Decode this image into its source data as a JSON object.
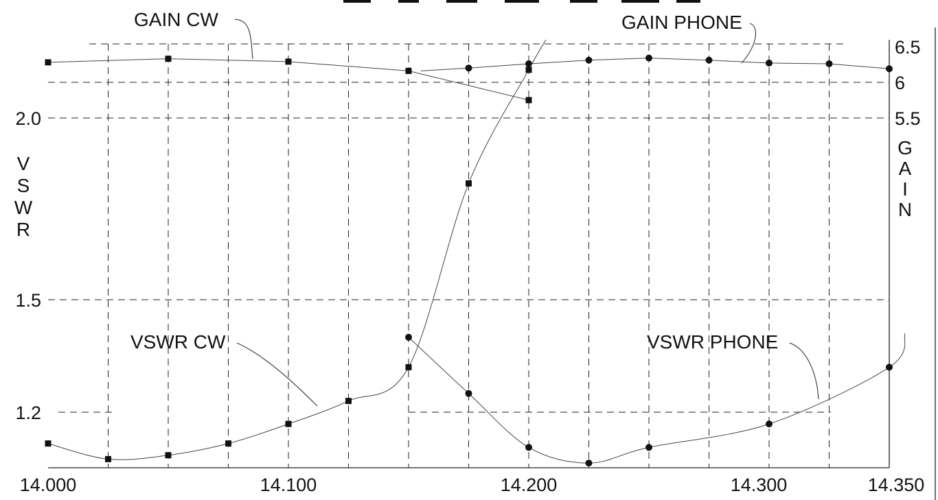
{
  "chart_data": {
    "type": "line",
    "title": "",
    "x_ticks": [
      "14.000",
      "14.100",
      "14.200",
      "14.300",
      "14.350"
    ],
    "xlim": [
      14.0,
      14.35
    ],
    "vswr_axis": {
      "label": "VSWR",
      "ticks": [
        "2.0",
        "1.5",
        "1.2"
      ],
      "tick_values": [
        2.0,
        1.5,
        1.2
      ]
    },
    "gain_axis": {
      "label": "GAIN",
      "ticks": [
        "6.5",
        "6",
        "5.5"
      ],
      "tick_values": [
        6.5,
        6.0,
        5.5
      ]
    },
    "grid": true,
    "series": [
      {
        "name": "GAIN CW",
        "axis": "gain",
        "marker": "square",
        "x": [
          14.0,
          14.05,
          14.1,
          14.15,
          14.2
        ],
        "y": [
          6.28,
          6.33,
          6.29,
          6.16,
          5.75
        ]
      },
      {
        "name": "GAIN PHONE",
        "axis": "gain",
        "marker": "circle",
        "x": [
          14.175,
          14.2,
          14.225,
          14.25,
          14.275,
          14.3,
          14.325,
          14.35
        ],
        "y": [
          6.2,
          6.26,
          6.31,
          6.34,
          6.31,
          6.27,
          6.26,
          6.19
        ]
      },
      {
        "name": "VSWR CW",
        "axis": "vswr",
        "marker": "square",
        "x": [
          14.0,
          14.025,
          14.05,
          14.075,
          14.1,
          14.125,
          14.15,
          14.175,
          14.2
        ],
        "y": [
          1.12,
          1.08,
          1.09,
          1.12,
          1.17,
          1.23,
          1.32,
          1.82,
          2.13
        ]
      },
      {
        "name": "VSWR PHONE",
        "axis": "vswr",
        "marker": "circle",
        "x": [
          14.15,
          14.175,
          14.2,
          14.225,
          14.25,
          14.3,
          14.35
        ],
        "y": [
          1.4,
          1.25,
          1.11,
          1.07,
          1.11,
          1.17,
          1.32
        ]
      }
    ],
    "annotations": [
      "GAIN CW",
      "GAIN PHONE",
      "VSWR CW",
      "VSWR PHONE"
    ]
  }
}
